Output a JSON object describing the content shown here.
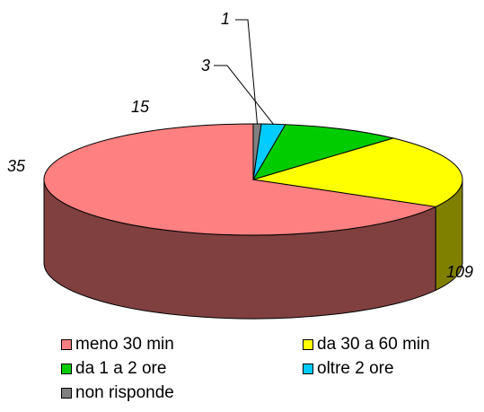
{
  "chart_data": {
    "type": "pie",
    "style": "3d",
    "categories": [
      "meno 30 min",
      "da 30 a 60 min",
      "da 1 a 2 ore",
      "oltre 2 ore",
      "non risponde"
    ],
    "values": [
      109,
      35,
      15,
      3,
      1
    ],
    "colors": [
      "#FF8080",
      "#FFFF00",
      "#00CC00",
      "#00CCFF",
      "#808080"
    ],
    "side_colors": [
      "#804040",
      "#808000",
      "#006600",
      "#006680",
      "#404040"
    ],
    "data_labels": [
      "109",
      "35",
      "15",
      "3",
      "1"
    ],
    "legend": {
      "placement": "bottom",
      "items": [
        "meno 30 min",
        "da 30 a 60 min",
        "da 1 a 2 ore",
        "oltre 2 ore",
        "non risponde"
      ]
    }
  }
}
